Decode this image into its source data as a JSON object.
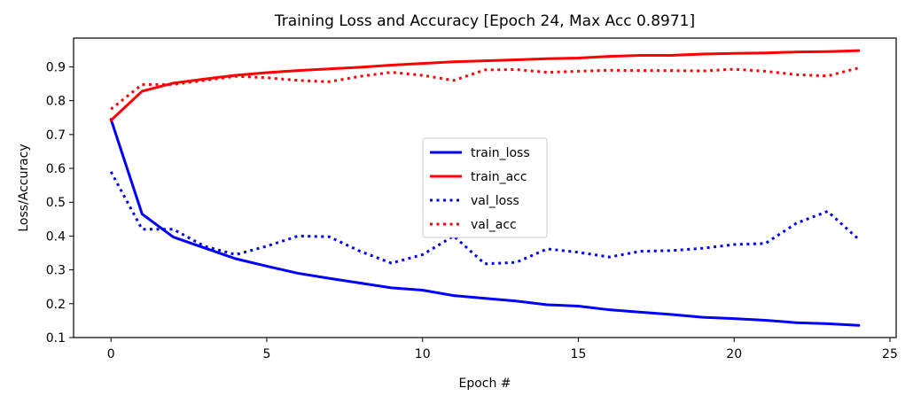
{
  "chart_data": {
    "type": "line",
    "title": "Training Loss and Accuracy [Epoch 24, Max Acc 0.8971]",
    "xlabel": "Epoch #",
    "ylabel": "Loss/Accuracy",
    "xlim": [
      -1.2,
      25.2
    ],
    "ylim": [
      0.1,
      0.985
    ],
    "xticks": [
      0,
      5,
      10,
      15,
      20,
      25
    ],
    "yticks": [
      0.1,
      0.2,
      0.3,
      0.4,
      0.5,
      0.6,
      0.7,
      0.8,
      0.9
    ],
    "grid": false,
    "legend_position": "center",
    "x": [
      0,
      1,
      2,
      3,
      4,
      5,
      6,
      7,
      8,
      9,
      10,
      11,
      12,
      13,
      14,
      15,
      16,
      17,
      18,
      19,
      20,
      21,
      22,
      23,
      24
    ],
    "series": [
      {
        "name": "train_loss",
        "color": "#0000ff",
        "style": "solid",
        "values": [
          0.745,
          0.465,
          0.397,
          0.365,
          0.333,
          0.311,
          0.29,
          0.275,
          0.261,
          0.247,
          0.24,
          0.224,
          0.216,
          0.208,
          0.197,
          0.193,
          0.182,
          0.175,
          0.168,
          0.16,
          0.156,
          0.151,
          0.144,
          0.141,
          0.136
        ]
      },
      {
        "name": "train_acc",
        "color": "#ff0000",
        "style": "solid",
        "values": [
          0.742,
          0.828,
          0.852,
          0.864,
          0.875,
          0.883,
          0.889,
          0.894,
          0.899,
          0.905,
          0.91,
          0.915,
          0.918,
          0.921,
          0.924,
          0.926,
          0.931,
          0.934,
          0.934,
          0.938,
          0.94,
          0.941,
          0.944,
          0.945,
          0.948
        ]
      },
      {
        "name": "val_loss",
        "color": "#0000ff",
        "style": "dotted",
        "values": [
          0.59,
          0.42,
          0.42,
          0.37,
          0.345,
          0.37,
          0.4,
          0.398,
          0.355,
          0.32,
          0.345,
          0.4,
          0.318,
          0.322,
          0.362,
          0.352,
          0.338,
          0.355,
          0.357,
          0.364,
          0.375,
          0.378,
          0.438,
          0.473,
          0.39
        ]
      },
      {
        "name": "val_acc",
        "color": "#ff0000",
        "style": "dotted",
        "values": [
          0.775,
          0.848,
          0.848,
          0.86,
          0.872,
          0.868,
          0.86,
          0.856,
          0.872,
          0.884,
          0.875,
          0.86,
          0.891,
          0.892,
          0.884,
          0.887,
          0.89,
          0.889,
          0.889,
          0.888,
          0.893,
          0.887,
          0.877,
          0.873,
          0.897
        ]
      }
    ]
  }
}
